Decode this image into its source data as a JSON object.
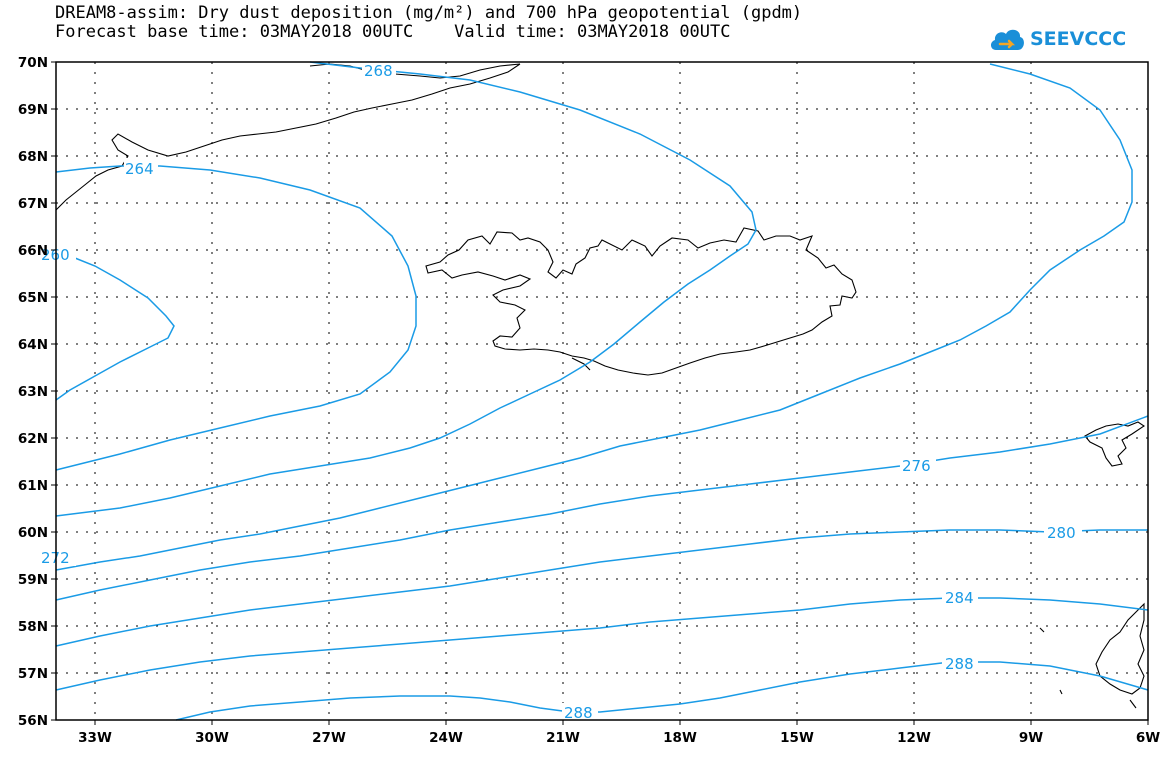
{
  "header": {
    "line1": "DREAM8-assim: Dry dust deposition (mg/m²) and 700 hPa geopotential (gpdm)",
    "line2": "Forecast base time: 03MAY2018 00UTC    Valid time: 03MAY2018 00UTC"
  },
  "logo": {
    "text": "SEEVCCC",
    "icon": "cloud-logo-icon",
    "color": "#1a8fd8"
  },
  "map": {
    "lon_range": [
      -34,
      -6
    ],
    "lat_range": [
      56,
      70
    ],
    "x_ticks": [
      "33W",
      "30W",
      "27W",
      "24W",
      "21W",
      "18W",
      "15W",
      "12W",
      "9W",
      "6W"
    ],
    "y_ticks": [
      "70N",
      "69N",
      "68N",
      "67N",
      "66N",
      "65N",
      "64N",
      "63N",
      "62N",
      "61N",
      "60N",
      "59N",
      "58N",
      "57N",
      "56N"
    ],
    "contour_color": "#1a9be6",
    "contour_labels": [
      "268",
      "264",
      "260",
      "272",
      "276",
      "280",
      "284",
      "288",
      "288"
    ]
  }
}
